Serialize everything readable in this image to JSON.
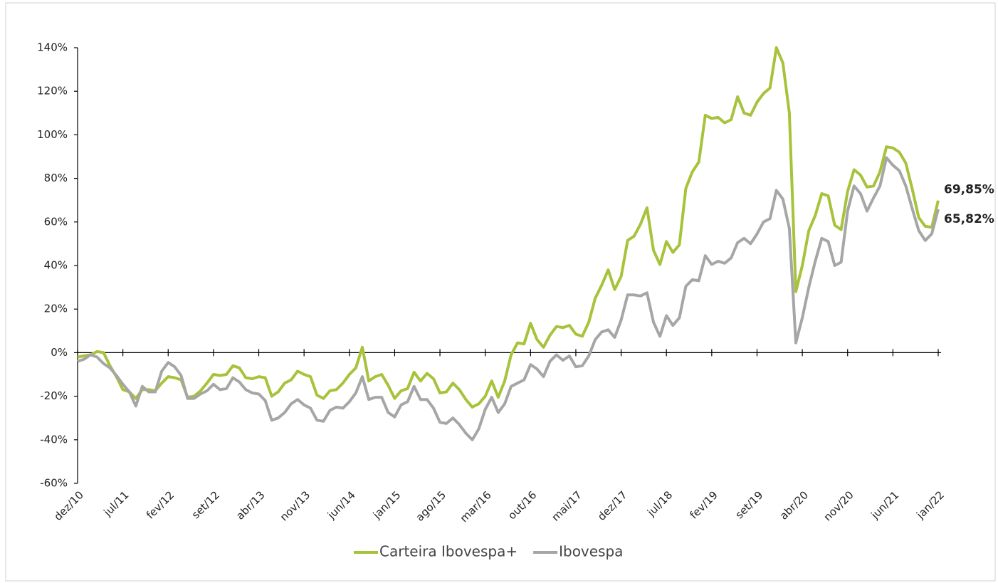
{
  "chart_data": {
    "type": "line",
    "categories": [
      "dez/10",
      null,
      null,
      null,
      null,
      null,
      null,
      "jul/11",
      null,
      null,
      null,
      null,
      null,
      null,
      "fev/12",
      null,
      null,
      null,
      null,
      null,
      null,
      "set/12",
      null,
      null,
      null,
      null,
      null,
      null,
      "abr/13",
      null,
      null,
      null,
      null,
      null,
      null,
      "nov/13",
      null,
      null,
      null,
      null,
      null,
      null,
      "jun/14",
      null,
      null,
      null,
      null,
      null,
      null,
      "jan/15",
      null,
      null,
      null,
      null,
      null,
      null,
      "ago/15",
      null,
      null,
      null,
      null,
      null,
      null,
      "mar/16",
      null,
      null,
      null,
      null,
      null,
      null,
      "out/16",
      null,
      null,
      null,
      null,
      null,
      null,
      "mai/17",
      null,
      null,
      null,
      null,
      null,
      null,
      "dez/17",
      null,
      null,
      null,
      null,
      null,
      null,
      "jul/18",
      null,
      null,
      null,
      null,
      null,
      null,
      "fev/19",
      null,
      null,
      null,
      null,
      null,
      null,
      "set/19",
      null,
      null,
      null,
      null,
      null,
      null,
      "abr/20",
      null,
      null,
      null,
      null,
      null,
      null,
      "nov/20",
      null,
      null,
      null,
      null,
      null,
      null,
      "jun/21",
      null,
      null,
      null,
      null,
      null,
      null,
      "jan/22"
    ],
    "series": [
      {
        "name": "Carteira Ibovespa+",
        "color": "#a7c23b",
        "values": [
          -2,
          -1.5,
          -1,
          0.5,
          0,
          -6,
          -11,
          -17,
          -18,
          -21,
          -17,
          -17,
          -17.5,
          -14,
          -11,
          -11.5,
          -12.5,
          -20.5,
          -20,
          -17.5,
          -14,
          -10,
          -10.5,
          -10,
          -6,
          -7,
          -11.5,
          -12,
          -11,
          -11.5,
          -20,
          -18,
          -14,
          -12.5,
          -8.5,
          -10,
          -11,
          -19.5,
          -21,
          -17.5,
          -17,
          -14,
          -10,
          -7,
          2.5,
          -13,
          -11,
          -10,
          -15,
          -21,
          -17.5,
          -16.5,
          -9,
          -13,
          -9.5,
          -12,
          -18.5,
          -18,
          -14,
          -17,
          -21.5,
          -25,
          -23.5,
          -20,
          -13,
          -20.5,
          -13,
          -1,
          4.5,
          4,
          13.5,
          6,
          2.5,
          8,
          12,
          11.5,
          12.5,
          8.5,
          7.5,
          14,
          25,
          31,
          38,
          29,
          35,
          51.5,
          53.5,
          59,
          66.5,
          47,
          40.5,
          51,
          46,
          49.5,
          75.5,
          83,
          87.5,
          109,
          107.5,
          108,
          105.5,
          107,
          117.5,
          110,
          109,
          115,
          119,
          121.5,
          140,
          133,
          110,
          28,
          40,
          56,
          63,
          73,
          72,
          58.5,
          56.5,
          74,
          84,
          81.5,
          76,
          76.5,
          83,
          94.5,
          94,
          92,
          87,
          75,
          62,
          58,
          57.5,
          69.85
        ],
        "value_labels": [
          null,
          null,
          null,
          null,
          null,
          null,
          null,
          null,
          null,
          null,
          null,
          null,
          null,
          null,
          null,
          null,
          null,
          null,
          null,
          null,
          null,
          null,
          null,
          null,
          null,
          null,
          null,
          null,
          null,
          null,
          null,
          null,
          null,
          null,
          null,
          null,
          null,
          null,
          null,
          null,
          null,
          null,
          null,
          null,
          null,
          null,
          null,
          null,
          null,
          null,
          null,
          null,
          null,
          null,
          null,
          null,
          null,
          null,
          null,
          null,
          null,
          null,
          null,
          null,
          null,
          null,
          null,
          null,
          null,
          null,
          null,
          null,
          null,
          null,
          null,
          null,
          null,
          null,
          null,
          null,
          null,
          null,
          null,
          null,
          null,
          null,
          null,
          null,
          null,
          null,
          null,
          null,
          null,
          null,
          null,
          null,
          null,
          null,
          null,
          null,
          null,
          null,
          null,
          null,
          null,
          null,
          null,
          null,
          null,
          null,
          null,
          null,
          null,
          null,
          null,
          null,
          null,
          null,
          null,
          null,
          null,
          null,
          null,
          null,
          null,
          null,
          null,
          null,
          null,
          null,
          null,
          null,
          null,
          "69,85%"
        ]
      },
      {
        "name": "Ibovespa",
        "color": "#a6a6a6",
        "values": [
          -4,
          -3,
          -1,
          -2,
          -5,
          -7,
          -10.5,
          -14.5,
          -18,
          -24.5,
          -15.5,
          -18,
          -18,
          -8.5,
          -4.5,
          -6.5,
          -10.5,
          -21,
          -21,
          -19,
          -17.5,
          -14.5,
          -17,
          -16.5,
          -11.5,
          -13.5,
          -17,
          -18.5,
          -19,
          -22,
          -31,
          -30,
          -27.5,
          -23.5,
          -21.5,
          -24,
          -25.5,
          -31,
          -31.5,
          -26.5,
          -25,
          -25.5,
          -22.5,
          -18.5,
          -11,
          -21.5,
          -20.5,
          -20.5,
          -27.5,
          -29.5,
          -24,
          -22.5,
          -15.5,
          -21.5,
          -21.5,
          -25.5,
          -32,
          -32.5,
          -30,
          -33,
          -37,
          -40,
          -35,
          -26,
          -20.5,
          -27.5,
          -23.5,
          -15.5,
          -14,
          -12.5,
          -5.5,
          -7.5,
          -11,
          -4,
          -1,
          -3.5,
          -1.5,
          -6.5,
          -6,
          -1.5,
          6,
          9.5,
          10.5,
          7,
          15,
          26.5,
          26.5,
          26,
          27.5,
          14,
          7.5,
          17,
          12.5,
          16,
          30.5,
          33.5,
          33,
          44.5,
          40.5,
          42,
          41,
          43.5,
          50.5,
          52.5,
          50,
          54.5,
          60,
          61.5,
          74.5,
          70.5,
          57,
          4.5,
          16,
          30,
          42,
          52.5,
          51,
          40,
          41.5,
          65,
          76.5,
          73,
          65,
          71,
          76.5,
          89.5,
          86,
          83.5,
          76.5,
          66,
          56,
          51.5,
          54.5,
          65.82
        ],
        "value_labels": [
          null,
          null,
          null,
          null,
          null,
          null,
          null,
          null,
          null,
          null,
          null,
          null,
          null,
          null,
          null,
          null,
          null,
          null,
          null,
          null,
          null,
          null,
          null,
          null,
          null,
          null,
          null,
          null,
          null,
          null,
          null,
          null,
          null,
          null,
          null,
          null,
          null,
          null,
          null,
          null,
          null,
          null,
          null,
          null,
          null,
          null,
          null,
          null,
          null,
          null,
          null,
          null,
          null,
          null,
          null,
          null,
          null,
          null,
          null,
          null,
          null,
          null,
          null,
          null,
          null,
          null,
          null,
          null,
          null,
          null,
          null,
          null,
          null,
          null,
          null,
          null,
          null,
          null,
          null,
          null,
          null,
          null,
          null,
          null,
          null,
          null,
          null,
          null,
          null,
          null,
          null,
          null,
          null,
          null,
          null,
          null,
          null,
          null,
          null,
          null,
          null,
          null,
          null,
          null,
          null,
          null,
          null,
          null,
          null,
          null,
          null,
          null,
          null,
          null,
          null,
          null,
          null,
          null,
          null,
          null,
          null,
          null,
          null,
          null,
          null,
          null,
          null,
          null,
          null,
          null,
          null,
          null,
          null,
          "65,82%"
        ]
      }
    ],
    "ylim": [
      -60,
      140
    ],
    "yticks": [
      {
        "value": -60,
        "label": "-60%"
      },
      {
        "value": -40,
        "label": "-40%"
      },
      {
        "value": -20,
        "label": "-20%"
      },
      {
        "value": 0,
        "label": "0%"
      },
      {
        "value": 20,
        "label": "20%"
      },
      {
        "value": 40,
        "label": "40%"
      },
      {
        "value": 60,
        "label": "60%"
      },
      {
        "value": 80,
        "label": "80%"
      },
      {
        "value": 100,
        "label": "100%"
      },
      {
        "value": 120,
        "label": "120%"
      },
      {
        "value": 140,
        "label": "140%"
      }
    ],
    "grid": false,
    "legend": "bottom"
  }
}
